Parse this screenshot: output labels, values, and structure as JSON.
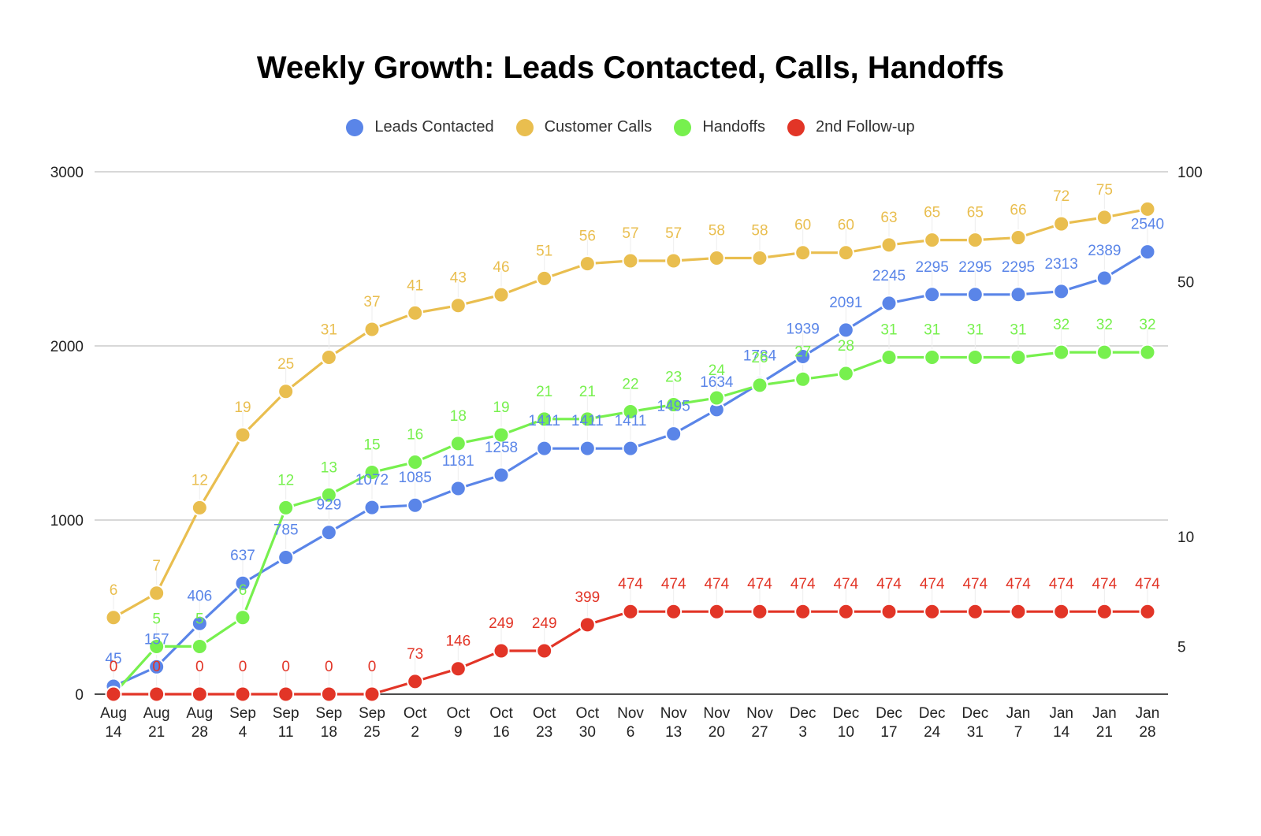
{
  "chart_data": {
    "type": "line",
    "title": "Weekly Growth: Leads Contacted, Calls, Handoffs",
    "categories": [
      [
        "Aug",
        "14"
      ],
      [
        "Aug",
        "21"
      ],
      [
        "Aug",
        "28"
      ],
      [
        "Sep",
        "4"
      ],
      [
        "Sep",
        "11"
      ],
      [
        "Sep",
        "18"
      ],
      [
        "Sep",
        "25"
      ],
      [
        "Oct",
        "2"
      ],
      [
        "Oct",
        "9"
      ],
      [
        "Oct",
        "16"
      ],
      [
        "Oct",
        "23"
      ],
      [
        "Oct",
        "30"
      ],
      [
        "Nov",
        "6"
      ],
      [
        "Nov",
        "13"
      ],
      [
        "Nov",
        "20"
      ],
      [
        "Nov",
        "27"
      ],
      [
        "Dec",
        "3"
      ],
      [
        "Dec",
        "10"
      ],
      [
        "Dec",
        "17"
      ],
      [
        "Dec",
        "24"
      ],
      [
        "Dec",
        "31"
      ],
      [
        "Jan",
        "7"
      ],
      [
        "Jan",
        "14"
      ],
      [
        "Jan",
        "21"
      ],
      [
        "Jan",
        "28"
      ]
    ],
    "left_axis": {
      "min": 0,
      "max": 3000,
      "ticks": [
        "0",
        "1000",
        "2000",
        "3000"
      ]
    },
    "right_axis": {
      "scale": "log",
      "min": 3.7,
      "max": 100,
      "ticks": [
        "5",
        "10",
        "50",
        "100"
      ]
    },
    "series": [
      {
        "name": "Leads Contacted",
        "color": "#5a85e8",
        "axis": "left",
        "values": [
          45,
          157,
          406,
          637,
          785,
          929,
          1072,
          1085,
          1181,
          1258,
          1411,
          1411,
          1411,
          1495,
          1634,
          1784,
          1939,
          2091,
          2245,
          2295,
          2295,
          2295,
          2313,
          2389,
          2540
        ],
        "labels": [
          "45",
          "157",
          "406",
          "637",
          "785",
          "929",
          "1072",
          "1085",
          "1181",
          "1258",
          "1411",
          "1411",
          "1411",
          "1495",
          "1634",
          "1784",
          "1939",
          "2091",
          "2245",
          "2295",
          "2295",
          "2295",
          "2313",
          "2389",
          "2540"
        ]
      },
      {
        "name": "Customer Calls",
        "color": "#e9be4f",
        "axis": "right",
        "values": [
          6,
          7,
          12,
          19,
          25,
          31,
          37,
          41,
          43,
          46,
          51,
          56,
          57,
          57,
          58,
          58,
          60,
          60,
          63,
          65,
          65,
          66,
          72,
          75,
          79
        ],
        "labels": [
          "6",
          "7",
          "12",
          "19",
          "25",
          "31",
          "37",
          "41",
          "43",
          "46",
          "51",
          "56",
          "57",
          "57",
          "58",
          "58",
          "60",
          "60",
          "63",
          "65",
          "65",
          "66",
          "72",
          "75",
          ""
        ]
      },
      {
        "name": "Handoffs",
        "color": "#77f04e",
        "axis": "right",
        "values": [
          3.7,
          5,
          5,
          6,
          12,
          13,
          15,
          16,
          18,
          19,
          21,
          21,
          22,
          23,
          24,
          26,
          27,
          28,
          31,
          31,
          31,
          31,
          32,
          32,
          32
        ],
        "labels": [
          "",
          "5",
          "5",
          "6",
          "12",
          "13",
          "15",
          "16",
          "18",
          "19",
          "21",
          "21",
          "22",
          "23",
          "24",
          "26",
          "27",
          "28",
          "31",
          "31",
          "31",
          "31",
          "32",
          "32",
          "32"
        ]
      },
      {
        "name": "2nd Follow-up",
        "color": "#e23527",
        "axis": "left",
        "values": [
          0,
          0,
          0,
          0,
          0,
          0,
          0,
          73,
          146,
          249,
          249,
          399,
          474,
          474,
          474,
          474,
          474,
          474,
          474,
          474,
          474,
          474,
          474,
          474,
          474
        ],
        "labels": [
          "0",
          "0",
          "0",
          "0",
          "0",
          "0",
          "0",
          "73",
          "146",
          "249",
          "249",
          "399",
          "474",
          "474",
          "474",
          "474",
          "474",
          "474",
          "474",
          "474",
          "474",
          "474",
          "474",
          "474",
          "474"
        ]
      }
    ]
  }
}
